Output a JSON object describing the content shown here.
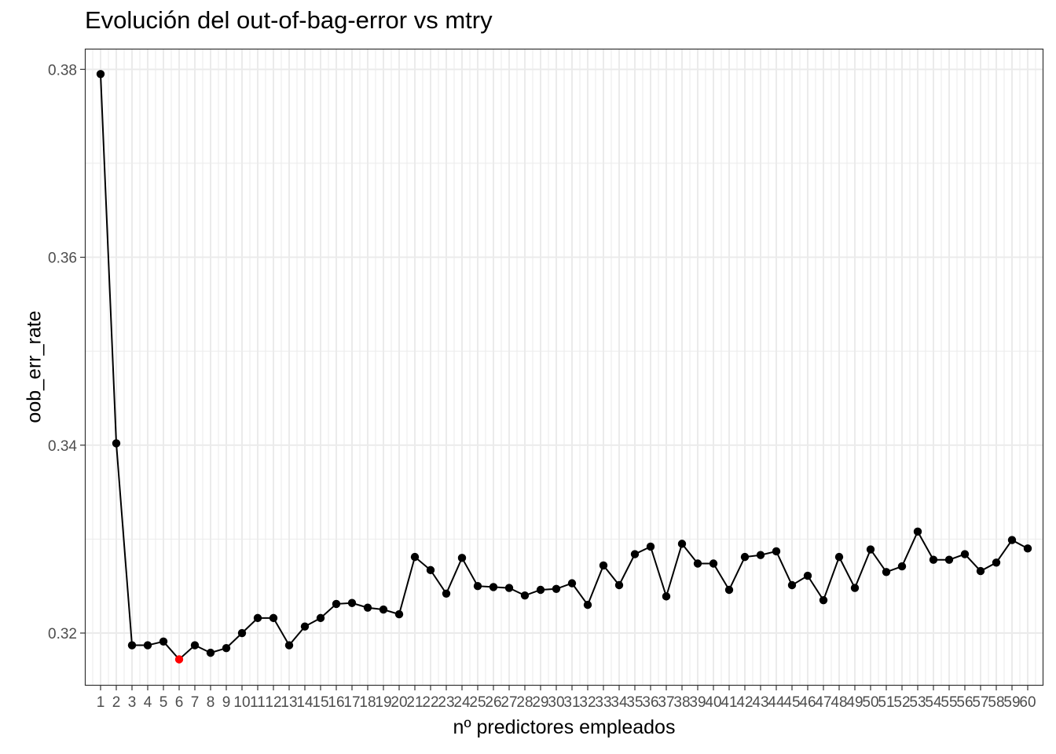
{
  "chart_data": {
    "type": "line",
    "title": "Evolución del out-of-bag-error vs mtry",
    "xlabel": "nº predictores empleados",
    "ylabel": "oob_err_rate",
    "x": [
      1,
      2,
      3,
      4,
      5,
      6,
      7,
      8,
      9,
      10,
      11,
      12,
      13,
      14,
      15,
      16,
      17,
      18,
      19,
      20,
      21,
      22,
      23,
      24,
      25,
      26,
      27,
      28,
      29,
      30,
      31,
      32,
      33,
      34,
      35,
      36,
      37,
      38,
      39,
      40,
      41,
      42,
      43,
      44,
      45,
      46,
      47,
      48,
      49,
      50,
      51,
      52,
      53,
      54,
      55,
      56,
      57,
      58,
      59,
      60
    ],
    "series": [
      {
        "values": [
          0.3795,
          0.3402,
          0.3187,
          0.3187,
          0.3191,
          0.3172,
          0.3187,
          0.3179,
          0.3184,
          0.32,
          0.3216,
          0.3216,
          0.3187,
          0.3207,
          0.3216,
          0.3231,
          0.3232,
          0.3227,
          0.3225,
          0.322,
          0.3281,
          0.3267,
          0.3242,
          0.328,
          0.325,
          0.3249,
          0.3248,
          0.324,
          0.3246,
          0.3247,
          0.3253,
          0.323,
          0.3272,
          0.3251,
          0.3284,
          0.3292,
          0.3239,
          0.3295,
          0.3274,
          0.3274,
          0.3246,
          0.3281,
          0.3283,
          0.3287,
          0.3251,
          0.3261,
          0.3235,
          0.3281,
          0.3248,
          0.3289,
          0.3265,
          0.3271,
          0.3308,
          0.3278,
          0.3278,
          0.3284,
          0.3266,
          0.3275,
          0.3299,
          0.329
        ]
      }
    ],
    "highlight": {
      "x": 6,
      "y": 0.3172,
      "color": "#ff0000"
    },
    "xticks": [
      "1",
      "2",
      "3",
      "4",
      "5",
      "6",
      "7",
      "8",
      "9",
      "10",
      "11",
      "12",
      "13",
      "14",
      "15",
      "16",
      "17",
      "18",
      "19",
      "20",
      "21",
      "22",
      "23",
      "24",
      "25",
      "26",
      "27",
      "28",
      "29",
      "30",
      "31",
      "32",
      "33",
      "34",
      "35",
      "36",
      "37",
      "38",
      "39",
      "40",
      "41",
      "42",
      "43",
      "44",
      "45",
      "46",
      "47",
      "48",
      "49",
      "50",
      "51",
      "52",
      "53",
      "54",
      "55",
      "56",
      "57",
      "58",
      "59",
      "60"
    ],
    "yticks": [
      0.32,
      0.34,
      0.36,
      0.38
    ],
    "ytick_labels": [
      "0.32",
      "0.34",
      "0.36",
      "0.38"
    ],
    "xlim": [
      0,
      61
    ],
    "ylim": [
      0.3144,
      0.3822
    ],
    "grid": true,
    "colors": {
      "line": "#000000",
      "point": "#000000",
      "highlight": "#ff0000",
      "grid": "#ebebeb",
      "panel_border": "#333333"
    }
  }
}
